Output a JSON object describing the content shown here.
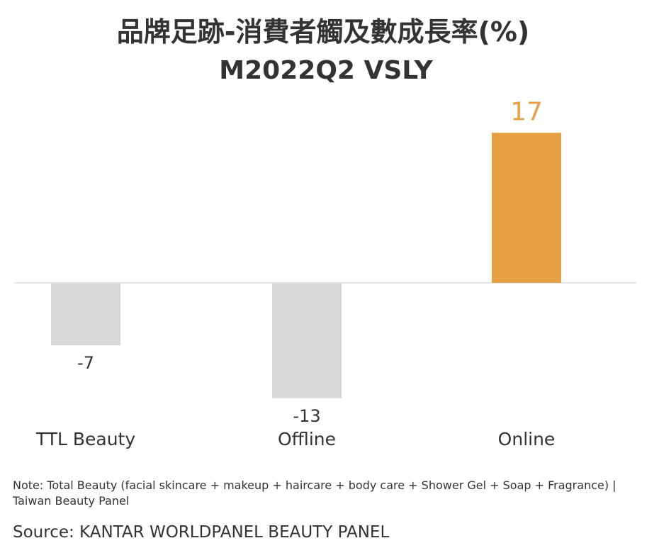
{
  "chart_data": {
    "type": "bar",
    "title": "品牌足跡-消費者觸及數成長率(%)",
    "subtitle": "M2022Q2 VSLY",
    "categories": [
      "TTL Beauty",
      "Offline",
      "Online"
    ],
    "values": [
      -7,
      -13,
      17
    ],
    "value_labels": [
      "-7",
      "-13",
      "17"
    ],
    "colors": [
      "#d9d9d9",
      "#d9d9d9",
      "#e6a045"
    ],
    "highlight_label_color": "#e6a045",
    "label_color": "#333333",
    "zero_line_color": "#d9d9d9",
    "ylim": [
      -13,
      17
    ],
    "grid": false,
    "legend": "none"
  },
  "footer": {
    "note": "Note: Total Beauty (facial skincare + makeup + haircare + body care + Shower Gel + Soap + Fragrance) | Taiwan Beauty Panel",
    "source": "Source: KANTAR WORLDPANEL BEAUTY PANEL"
  }
}
